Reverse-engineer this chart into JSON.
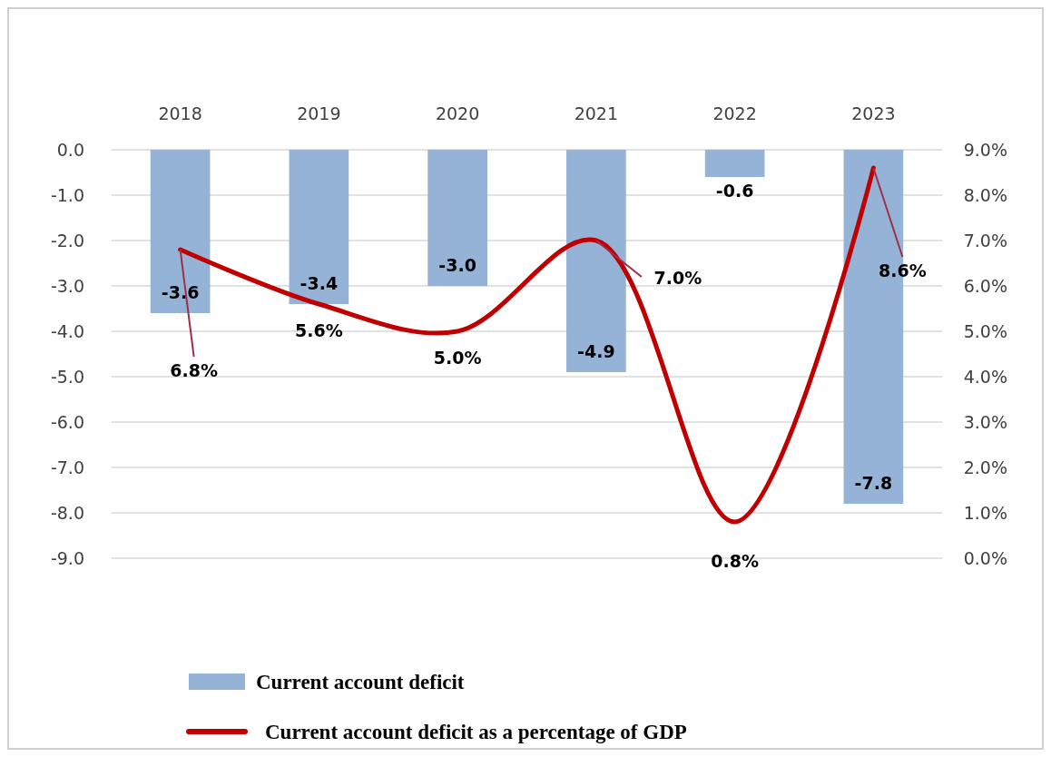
{
  "chart_data": {
    "type": "bar",
    "categories": [
      "2018",
      "2019",
      "2020",
      "2021",
      "2022",
      "2023"
    ],
    "series": [
      {
        "name": "Current account deficit",
        "color": "#95b3d7",
        "values": [
          -3.6,
          -3.4,
          -3.0,
          -4.9,
          -0.6,
          -7.8
        ],
        "value_labels": [
          "-3.6",
          "-3.4",
          "-3.0",
          "-4.9",
          "-0.6",
          "-7.8"
        ]
      },
      {
        "name": "Current account deficit as a percentage of GDP",
        "type": "line",
        "axis": "y2",
        "color": "#c00000",
        "values": [
          6.8,
          5.6,
          5.0,
          7.0,
          0.8,
          8.6
        ],
        "value_labels": [
          "6.8%",
          "5.6%",
          "5.0%",
          "7.0%",
          "0.8%",
          "8.6%"
        ]
      }
    ],
    "ylim": [
      -9,
      0
    ],
    "yticks": [
      {
        "value": 0,
        "label": "0.0"
      },
      {
        "value": -1,
        "label": "-1.0"
      },
      {
        "value": -2,
        "label": "-2.0"
      },
      {
        "value": -3,
        "label": "-3.0"
      },
      {
        "value": -4,
        "label": "-4.0"
      },
      {
        "value": -5,
        "label": "-5.0"
      },
      {
        "value": -6,
        "label": "-6.0"
      },
      {
        "value": -7,
        "label": "-7.0"
      },
      {
        "value": -8,
        "label": "-8.0"
      },
      {
        "value": -9,
        "label": "-9.0"
      }
    ],
    "y2lim": [
      0,
      9
    ],
    "y2ticks": [
      {
        "value": 0,
        "label": "0.0%"
      },
      {
        "value": 1,
        "label": "1.0%"
      },
      {
        "value": 2,
        "label": "2.0%"
      },
      {
        "value": 3,
        "label": "3.0%"
      },
      {
        "value": 4,
        "label": "4.0%"
      },
      {
        "value": 5,
        "label": "5.0%"
      },
      {
        "value": 6,
        "label": "6.0%"
      },
      {
        "value": 7,
        "label": "7.0%"
      },
      {
        "value": 8,
        "label": "8.0%"
      },
      {
        "value": 9,
        "label": "9.0%"
      }
    ],
    "grid": "y",
    "legend": "bottom"
  }
}
